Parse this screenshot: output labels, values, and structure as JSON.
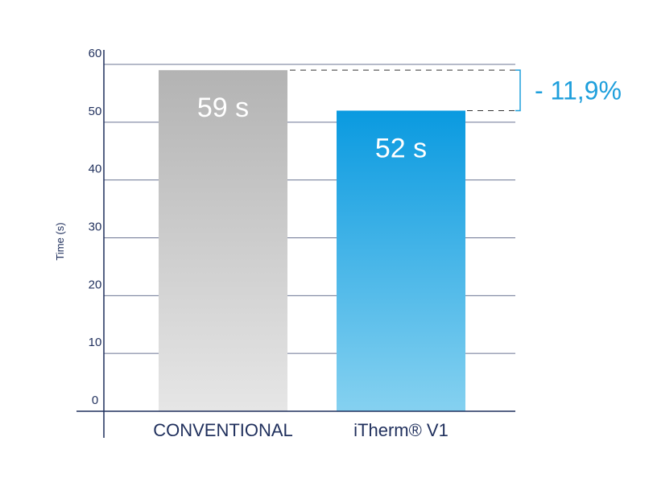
{
  "chart_data": {
    "type": "bar",
    "categories": [
      "CONVENTIONAL",
      "iTherm® V1"
    ],
    "values": [
      59,
      52
    ],
    "data_labels": [
      "59 s",
      "52 s"
    ],
    "ylabel": "Time (s)",
    "ylim": [
      0,
      60
    ],
    "yticks": [
      0,
      10,
      20,
      30,
      40,
      50,
      60
    ],
    "grid": true,
    "annotation": "- 11,9%",
    "colors": {
      "axis": "#1f2f5c",
      "grid": "#6b7593",
      "conventional_top": "#b3b3b3",
      "conventional_bottom": "#e6e6e6",
      "itherm_top": "#0a9ae0",
      "itherm_bottom": "#85d1f0",
      "annotation": "#1e9fdc"
    }
  }
}
